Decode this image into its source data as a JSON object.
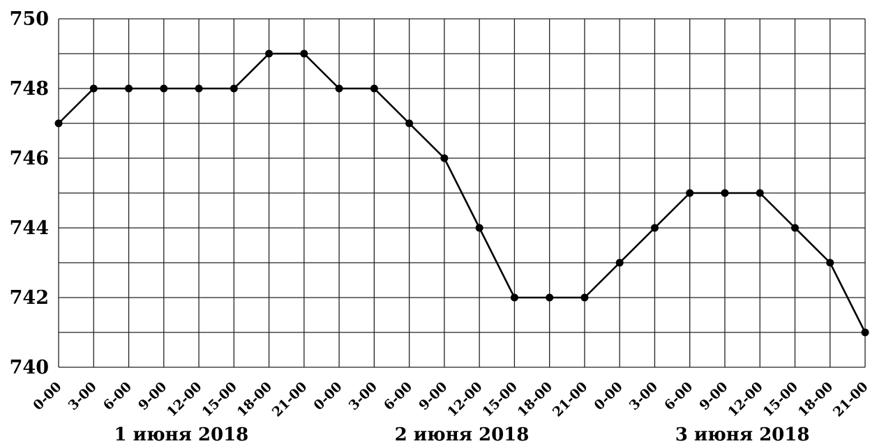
{
  "chart_data": {
    "type": "line",
    "title": "",
    "xlabel": "",
    "ylabel": "",
    "ylim": [
      740,
      750
    ],
    "yticks": [
      "740",
      "742",
      "744",
      "746",
      "748",
      "750"
    ],
    "grid": true,
    "x": [
      "0-00",
      "3-00",
      "6-00",
      "9-00",
      "12-00",
      "15-00",
      "18-00",
      "21-00",
      "0-00",
      "3-00",
      "6-00",
      "9-00",
      "12-00",
      "15-00",
      "18-00",
      "21-00",
      "0-00",
      "3-00",
      "6-00",
      "9-00",
      "12-00",
      "15-00",
      "18-00",
      "21-00"
    ],
    "day_labels": [
      "1 июня 2018",
      "2 июня 2018",
      "3 июня 2018"
    ],
    "series": [
      {
        "values": [
          747,
          748,
          748,
          748,
          748,
          748,
          749,
          749,
          748,
          748,
          747,
          746,
          744,
          742,
          742,
          742,
          743,
          744,
          745,
          745,
          745,
          744,
          743,
          741
        ]
      }
    ]
  }
}
